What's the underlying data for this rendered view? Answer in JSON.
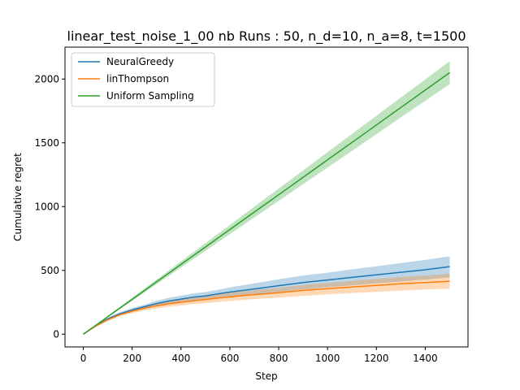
{
  "chart_data": {
    "type": "line",
    "title": "linear_test_noise_1_00 nb Runs : 50, n_d=10, n_a=8, t=1500",
    "xlabel": "Step",
    "ylabel": "Cumulative regret",
    "xlim": [
      -75,
      1575
    ],
    "ylim": [
      -100,
      2250
    ],
    "xticks": [
      0,
      200,
      400,
      600,
      800,
      1000,
      1200,
      1400
    ],
    "yticks": [
      0,
      500,
      1000,
      1500,
      2000
    ],
    "grid": false,
    "legend_position": "top-left",
    "x": [
      0,
      50,
      100,
      150,
      200,
      250,
      300,
      350,
      400,
      450,
      500,
      550,
      600,
      700,
      800,
      900,
      1000,
      1100,
      1200,
      1300,
      1400,
      1500
    ],
    "series": [
      {
        "name": "NeuralGreedy",
        "color": "#1f77b4",
        "values": [
          0,
          65,
          120,
          160,
          190,
          215,
          240,
          260,
          275,
          290,
          300,
          315,
          330,
          355,
          380,
          405,
          425,
          445,
          465,
          485,
          505,
          530
        ],
        "lower": [
          0,
          60,
          110,
          148,
          175,
          198,
          218,
          235,
          248,
          260,
          270,
          282,
          293,
          312,
          330,
          350,
          368,
          382,
          398,
          413,
          428,
          445
        ],
        "upper": [
          0,
          70,
          130,
          172,
          205,
          232,
          262,
          285,
          302,
          320,
          330,
          348,
          367,
          398,
          430,
          460,
          482,
          508,
          532,
          557,
          582,
          610
        ]
      },
      {
        "name": "linThompson",
        "color": "#ff7f0e",
        "values": [
          0,
          62,
          113,
          152,
          180,
          203,
          222,
          238,
          250,
          262,
          272,
          283,
          292,
          310,
          325,
          343,
          357,
          370,
          383,
          395,
          405,
          415
        ],
        "lower": [
          0,
          57,
          103,
          140,
          165,
          186,
          202,
          215,
          225,
          235,
          243,
          252,
          260,
          275,
          287,
          300,
          312,
          322,
          332,
          342,
          350,
          357
        ],
        "upper": [
          0,
          67,
          123,
          164,
          195,
          220,
          242,
          261,
          275,
          289,
          301,
          314,
          324,
          345,
          363,
          386,
          402,
          418,
          434,
          448,
          460,
          473
        ]
      },
      {
        "name": "Uniform Sampling",
        "color": "#2ca02c",
        "values": [
          0,
          68,
          137,
          205,
          273,
          342,
          410,
          478,
          547,
          615,
          683,
          752,
          820,
          957,
          1093,
          1230,
          1367,
          1503,
          1640,
          1777,
          1913,
          2050
        ],
        "lower": [
          0,
          65,
          131,
          196,
          261,
          327,
          392,
          457,
          523,
          588,
          653,
          719,
          784,
          915,
          1045,
          1176,
          1307,
          1437,
          1568,
          1699,
          1829,
          1960
        ],
        "upper": [
          0,
          71,
          143,
          214,
          285,
          357,
          428,
          499,
          571,
          642,
          713,
          785,
          856,
          999,
          1141,
          1284,
          1427,
          1569,
          1712,
          1855,
          1997,
          2140
        ]
      }
    ]
  }
}
